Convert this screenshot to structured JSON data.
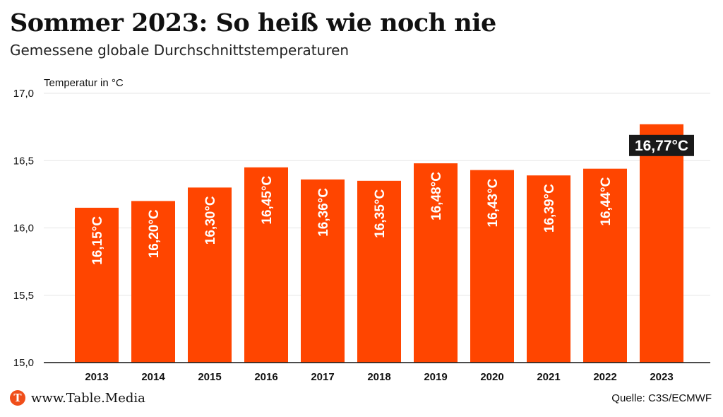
{
  "title": "Sommer 2023: So heiß wie noch nie",
  "subtitle": "Gemessene globale Durchschnittstemperaturen",
  "footer": {
    "logo_letter": "T",
    "website": "www.Table.Media",
    "source": "Quelle: C3S/ECMWF"
  },
  "colors": {
    "bar": "#ff4500",
    "callout_bg": "#1a1a1a",
    "grid": "#e6e6e6",
    "logo": "#f04e1a"
  },
  "chart_data": {
    "type": "bar",
    "ylabel": "Temperatur in °C",
    "ylim": [
      15.0,
      17.0
    ],
    "yticks": [
      15.0,
      15.5,
      16.0,
      16.5,
      17.0
    ],
    "ytick_labels": [
      "15,0",
      "15,5",
      "16,0",
      "16,5",
      "17,0"
    ],
    "grid": true,
    "categories": [
      "2013",
      "2014",
      "2015",
      "2016",
      "2017",
      "2018",
      "2019",
      "2020",
      "2021",
      "2022",
      "2023"
    ],
    "values": [
      16.15,
      16.2,
      16.3,
      16.45,
      16.36,
      16.35,
      16.48,
      16.43,
      16.39,
      16.44,
      16.77
    ],
    "data_labels": [
      "16,15°C",
      "16,20°C",
      "16,30°C",
      "16,45°C",
      "16,36°C",
      "16,35°C",
      "16,48°C",
      "16,43°C",
      "16,39°C",
      "16,44°C",
      "16,77°C"
    ],
    "highlight_index": 10
  }
}
